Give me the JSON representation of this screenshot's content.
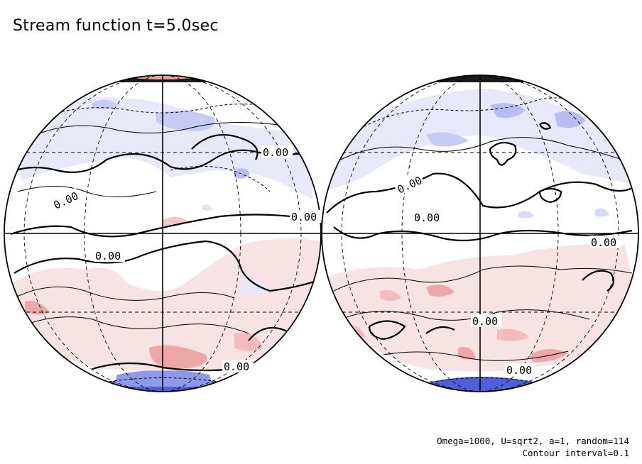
{
  "title": "Stream function t=5.0sec",
  "contour_label": "0.00",
  "footnote": {
    "params": "Omega=1000, U=sqrt2, a=1, random=114",
    "interval": "Contour interval=0.1"
  },
  "colors": {
    "positive_fill": "#f7d6d6",
    "positive_strong": "#eea7a7",
    "negative_fill": "#e8e8fb",
    "negative_strong": "#b8bdf2",
    "pole_negative": "#4f5fd8",
    "pole_dark": "#1a1a1a",
    "line": "#000000"
  }
}
